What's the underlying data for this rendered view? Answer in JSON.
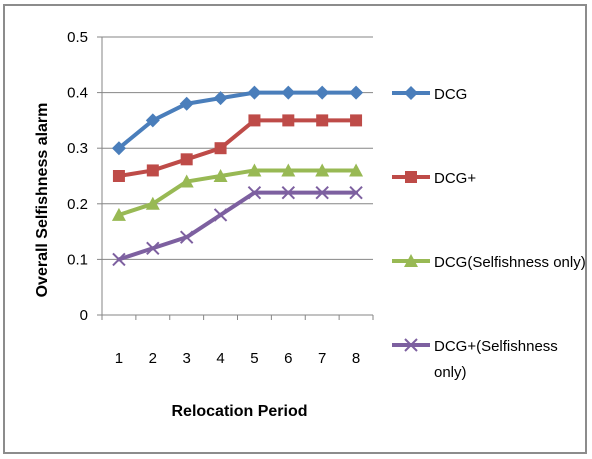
{
  "chart_data": {
    "type": "line",
    "categories": [
      "1",
      "2",
      "3",
      "4",
      "5",
      "6",
      "7",
      "8"
    ],
    "series": [
      {
        "name": "DCG",
        "values": [
          0.3,
          0.35,
          0.38,
          0.39,
          0.4,
          0.4,
          0.4,
          0.4
        ],
        "color": "#4a7ebb",
        "marker": "diamond"
      },
      {
        "name": "DCG+",
        "values": [
          0.25,
          0.26,
          0.28,
          0.3,
          0.35,
          0.35,
          0.35,
          0.35
        ],
        "color": "#be4b48",
        "marker": "square"
      },
      {
        "name": "DCG(Selfishness only)",
        "values": [
          0.18,
          0.2,
          0.24,
          0.25,
          0.26,
          0.26,
          0.26,
          0.26
        ],
        "color": "#98b954",
        "marker": "triangle"
      },
      {
        "name": "DCG+(Selfishness only)",
        "values": [
          0.1,
          0.12,
          0.14,
          0.18,
          0.22,
          0.22,
          0.22,
          0.22
        ],
        "color": "#7d60a0",
        "marker": "x"
      }
    ],
    "title": "",
    "xlabel": "Relocation Period",
    "ylabel": "Overall Selfishness alarm",
    "ylim": [
      0,
      0.5
    ],
    "yticks": [
      "0",
      "0.1",
      "0.2",
      "0.3",
      "0.4",
      "0.5"
    ],
    "grid": true,
    "legend_position": "right"
  }
}
